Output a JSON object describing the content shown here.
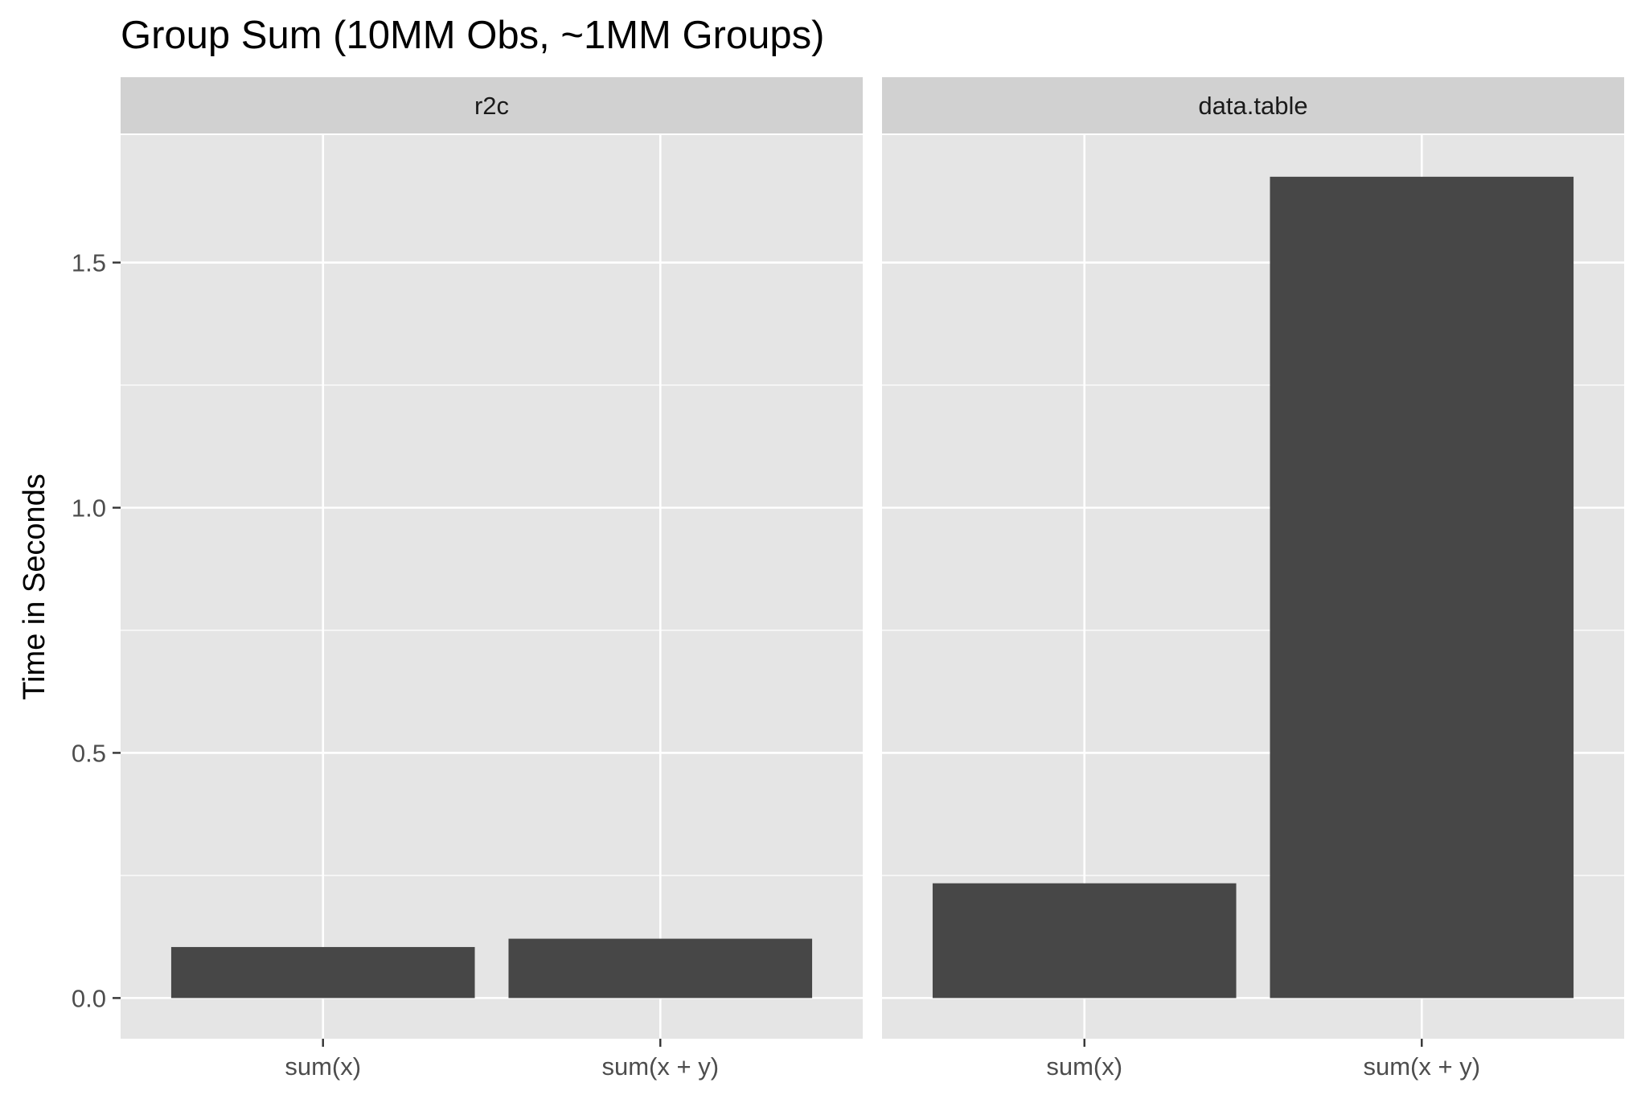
{
  "chart_data": {
    "type": "bar",
    "title": "Group Sum (10MM Obs, ~1MM Groups)",
    "xlabel": "",
    "ylabel": "Time in Seconds",
    "ylim": [
      -0.083,
      1.76
    ],
    "y_ticks": [
      0.0,
      0.5,
      1.0,
      1.5
    ],
    "y_tick_labels": [
      "0.0",
      "0.5",
      "1.0",
      "1.5"
    ],
    "categories": [
      "sum(x)",
      "sum(x + y)"
    ],
    "grid": true,
    "facets": [
      {
        "label": "r2c",
        "values": [
          0.104,
          0.121
        ]
      },
      {
        "label": "data.table",
        "values": [
          0.234,
          1.675
        ]
      }
    ],
    "colors": {
      "bar": "#474747",
      "panel": "#e5e5e5",
      "strip": "#d1d1d1",
      "grid": "#ffffff"
    }
  }
}
